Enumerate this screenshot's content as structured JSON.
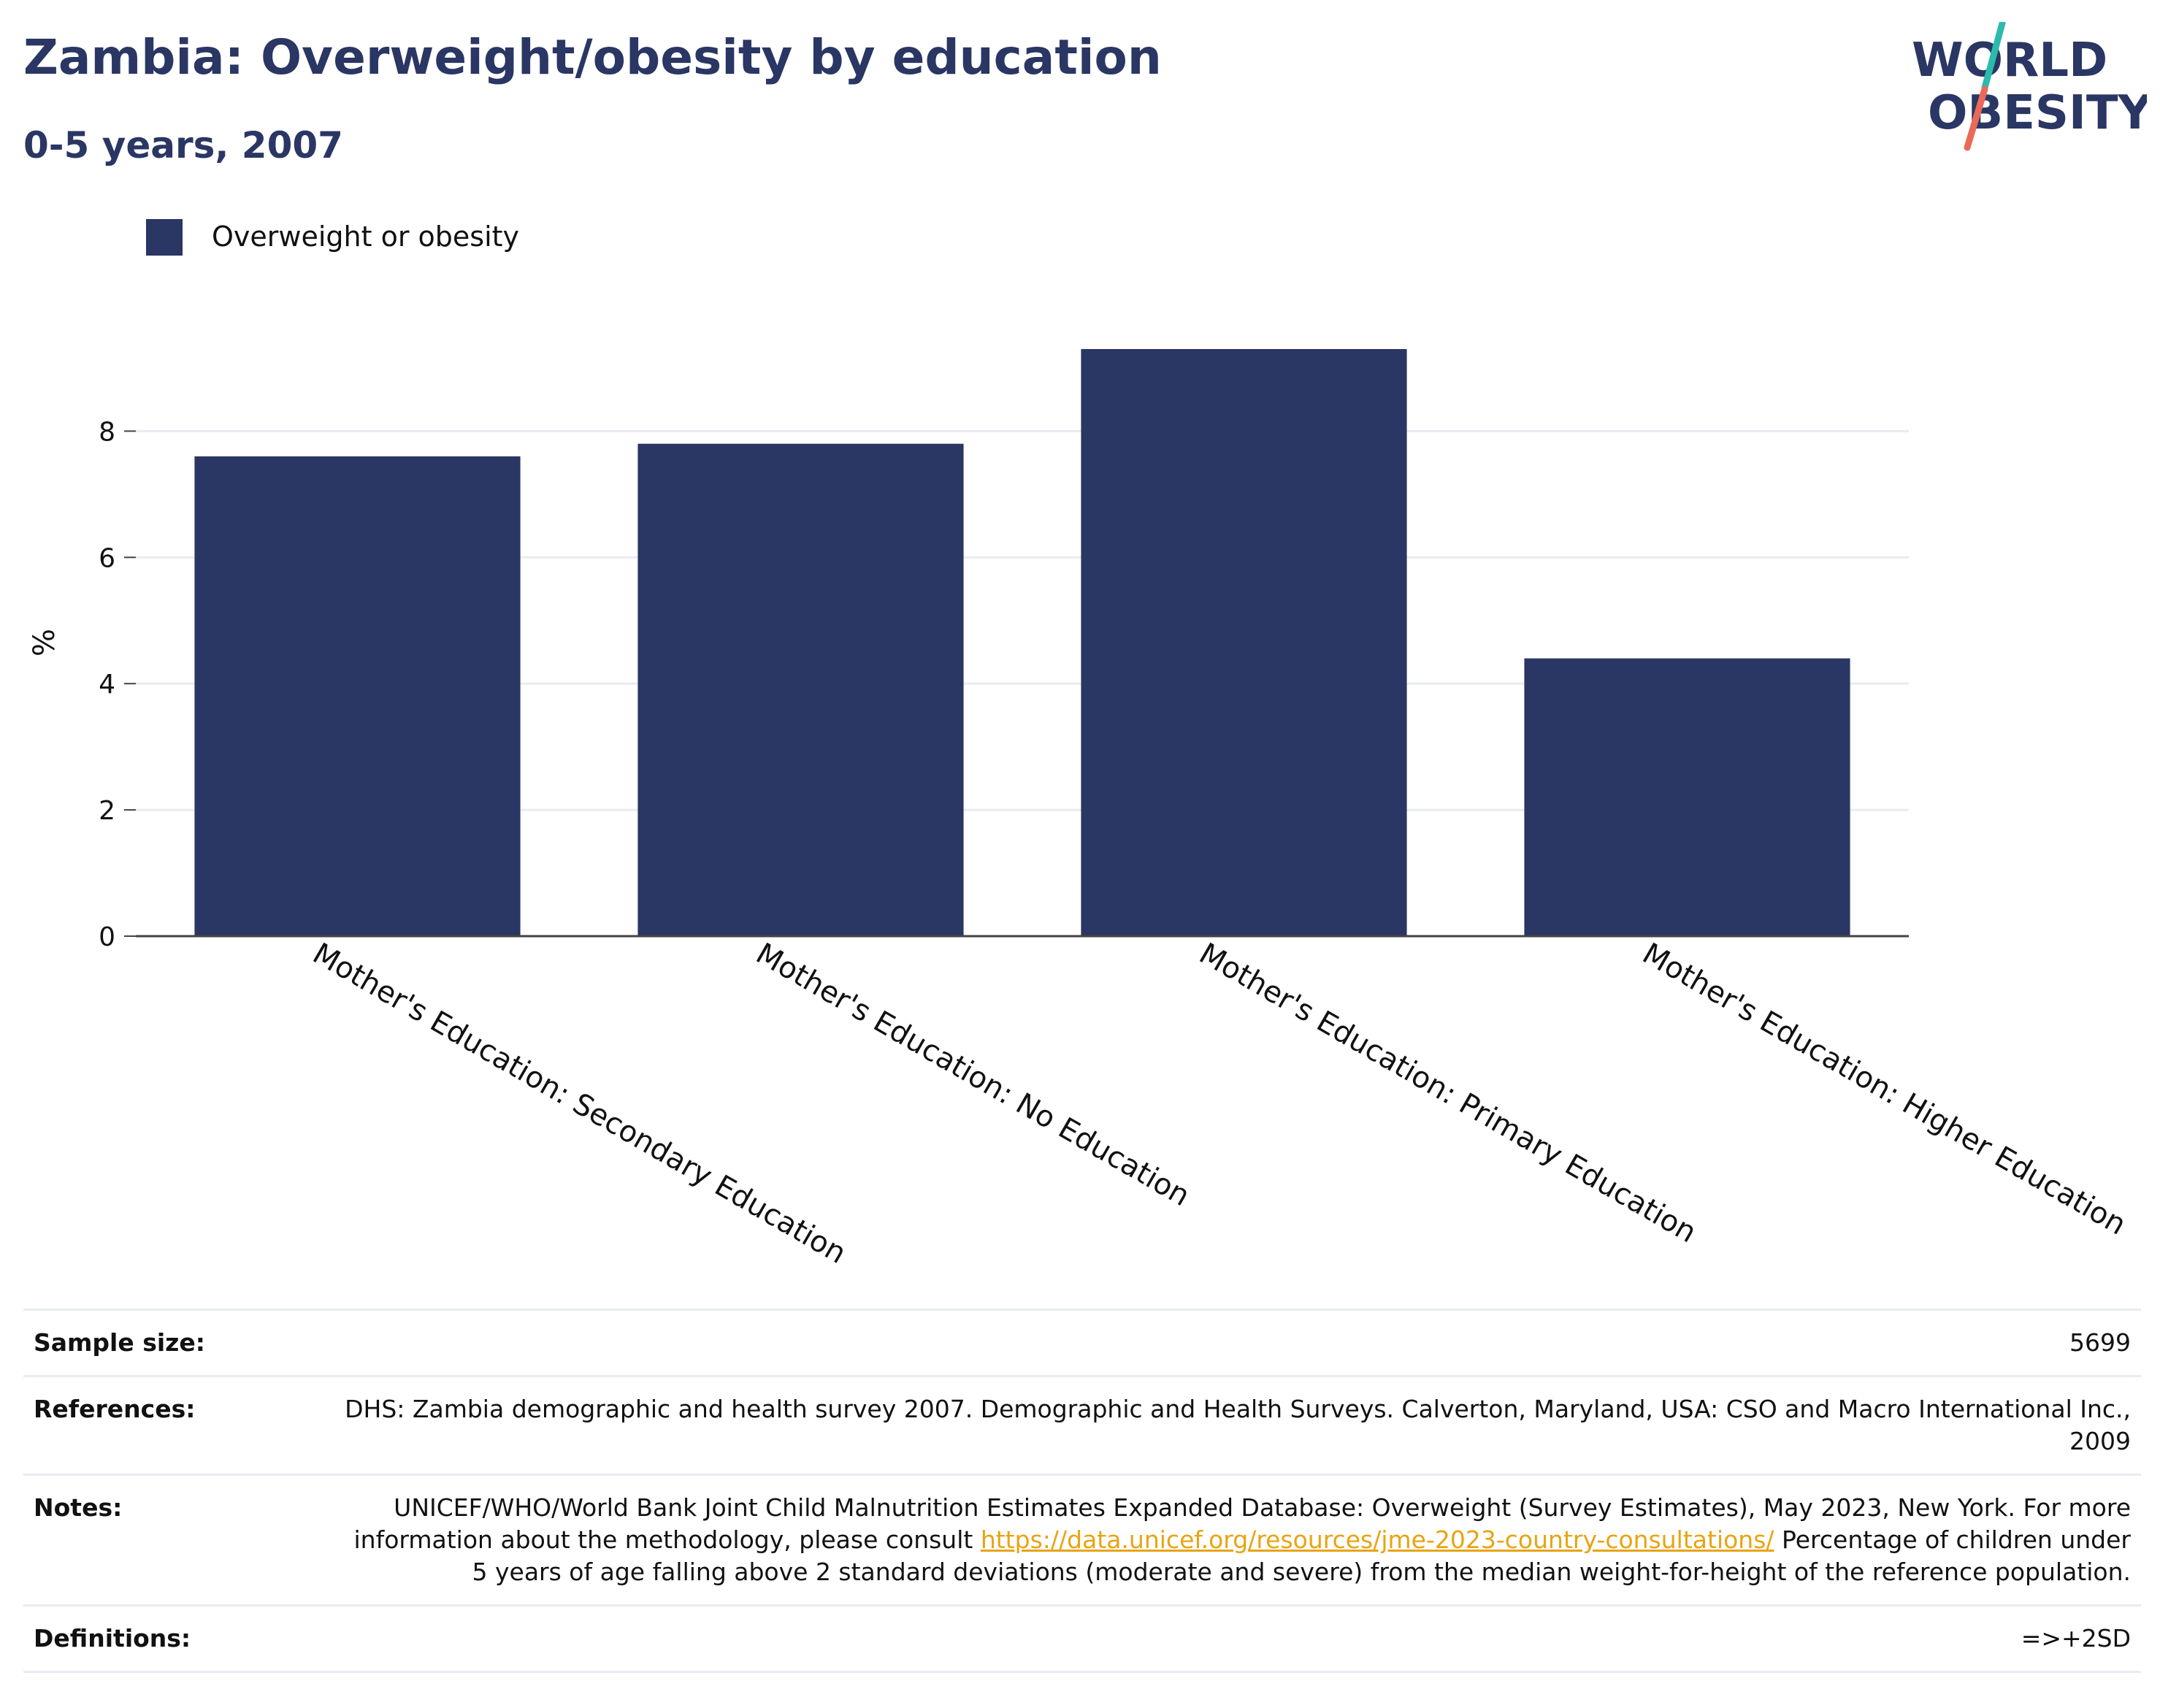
{
  "title": "Zambia: Overweight/obesity by education",
  "subtitle": "0-5 years, 2007",
  "logo": {
    "line1": "WORLD",
    "line2": "OBESITY"
  },
  "legend": {
    "label": "Overweight or obesity"
  },
  "colors": {
    "bar": "#2a3663",
    "title": "#2a3663",
    "grid": "#e8ebf2",
    "axis": "#444444",
    "link": "#e8a412",
    "logo_teal": "#2bbbad",
    "logo_coral": "#ea6a58"
  },
  "chart_data": {
    "type": "bar",
    "categories": [
      "Mother's Education: Secondary Education",
      "Mother's Education: No Education",
      "Mother's Education: Primary Education",
      "Mother's Education: Higher Education"
    ],
    "series": [
      {
        "name": "Overweight or obesity",
        "values": [
          7.6,
          7.8,
          9.3,
          4.4
        ]
      }
    ],
    "ylabel": "%",
    "xlabel": "",
    "ylim": [
      0,
      9.3
    ],
    "yticks": [
      0,
      2,
      4,
      6,
      8
    ],
    "grid": true,
    "legend_position": "top-left"
  },
  "meta": {
    "sample_size": {
      "label": "Sample size:",
      "value": "5699"
    },
    "references": {
      "label": "References:",
      "value": "DHS: Zambia demographic and health survey 2007. Demographic and Health Surveys. Calverton, Maryland, USA: CSO and Macro International Inc., 2009"
    },
    "notes": {
      "label": "Notes:",
      "text_before": "UNICEF/WHO/World Bank Joint Child Malnutrition Estimates Expanded Database: Overweight (Survey Estimates), May 2023, New York. For more information about the methodology, please consult ",
      "link": "https://data.unicef.org/resources/jme-2023-country-consultations/",
      "text_after": " Percentage of children under 5 years of age falling above 2 standard deviations (moderate and severe) from the median weight-for-height of the reference population."
    },
    "definitions": {
      "label": "Definitions:",
      "value": "=>+2SD"
    }
  }
}
